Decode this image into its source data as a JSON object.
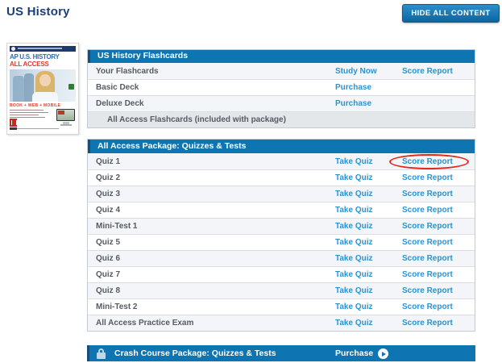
{
  "page": {
    "title": "US History"
  },
  "header": {
    "hide_button_label": "HIDE ALL CONTENT"
  },
  "book_cover": {
    "series_title": "AP U.S. HISTORY",
    "subtitle": "ALL ACCESS",
    "formats_line": "BOOK + WEB + MOBILE"
  },
  "flashcards_table": {
    "title": "US History Flashcards",
    "rows": [
      {
        "label": "Your Flashcards",
        "link1": "Study Now",
        "link2": "Score Report"
      },
      {
        "label": "Basic Deck",
        "link1": "Purchase"
      },
      {
        "label": "Deluxe Deck",
        "link1": "Purchase"
      },
      {
        "label": "All Access Flashcards (included with package)"
      }
    ]
  },
  "quizzes_table": {
    "title": "All Access Package: Quizzes & Tests",
    "take_quiz_label": "Take Quiz",
    "score_report_label": "Score Report",
    "highlighted_row": "Quiz 1",
    "rows": [
      "Quiz 1",
      "Quiz 2",
      "Quiz 3",
      "Quiz 4",
      "Mini-Test 1",
      "Quiz 5",
      "Quiz 6",
      "Quiz 7",
      "Quiz 8",
      "Mini-Test 2",
      "All Access Practice Exam"
    ]
  },
  "crash_bar": {
    "title": "Crash Course Package: Quizzes & Tests",
    "purchase_label": "Purchase"
  },
  "colors": {
    "bar_blue": "#0e74b2",
    "bar_edge_navy": "#144d7e",
    "link_blue": "#2b93d1",
    "title_navy": "#193f79",
    "row_text": "#565b64",
    "row_alt_bg": "#f3f5f8",
    "row_special_bg": "#e4e7ea",
    "highlight_ellipse_red": "#e02a1f",
    "button_gradient_top": "#2a8fc9",
    "button_gradient_bottom": "#0d659f"
  }
}
